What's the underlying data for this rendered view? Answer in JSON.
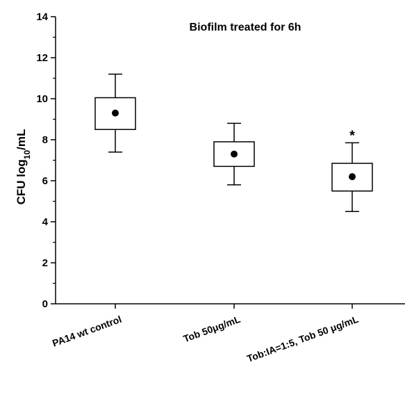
{
  "chart_data": {
    "type": "box",
    "title": "Biofilm treated for 6h",
    "ylabel": {
      "prefix": "CFU log",
      "subscript": "10",
      "suffix": "/mL"
    },
    "xlabel": "",
    "ylim": [
      0,
      14
    ],
    "yticks": [
      0,
      2,
      4,
      6,
      8,
      10,
      12,
      14
    ],
    "grid": false,
    "legend": "none",
    "categories": [
      "PA14 wt control",
      "Tob 50μg/mL",
      "Tob:IA=1:5, Tob 50 μg/mL"
    ],
    "boxes": [
      {
        "whisker_low": 7.4,
        "q1": 8.5,
        "q3": 10.05,
        "whisker_high": 11.2,
        "mean": 9.3,
        "annotation": ""
      },
      {
        "whisker_low": 5.8,
        "q1": 6.7,
        "q3": 7.9,
        "whisker_high": 8.8,
        "mean": 7.3,
        "annotation": ""
      },
      {
        "whisker_low": 4.5,
        "q1": 5.5,
        "q3": 6.85,
        "whisker_high": 7.85,
        "mean": 6.2,
        "annotation": "*"
      }
    ],
    "colors": {
      "box_fill": "#ffffff",
      "stroke": "#000000",
      "mean_marker": "#000000"
    }
  }
}
